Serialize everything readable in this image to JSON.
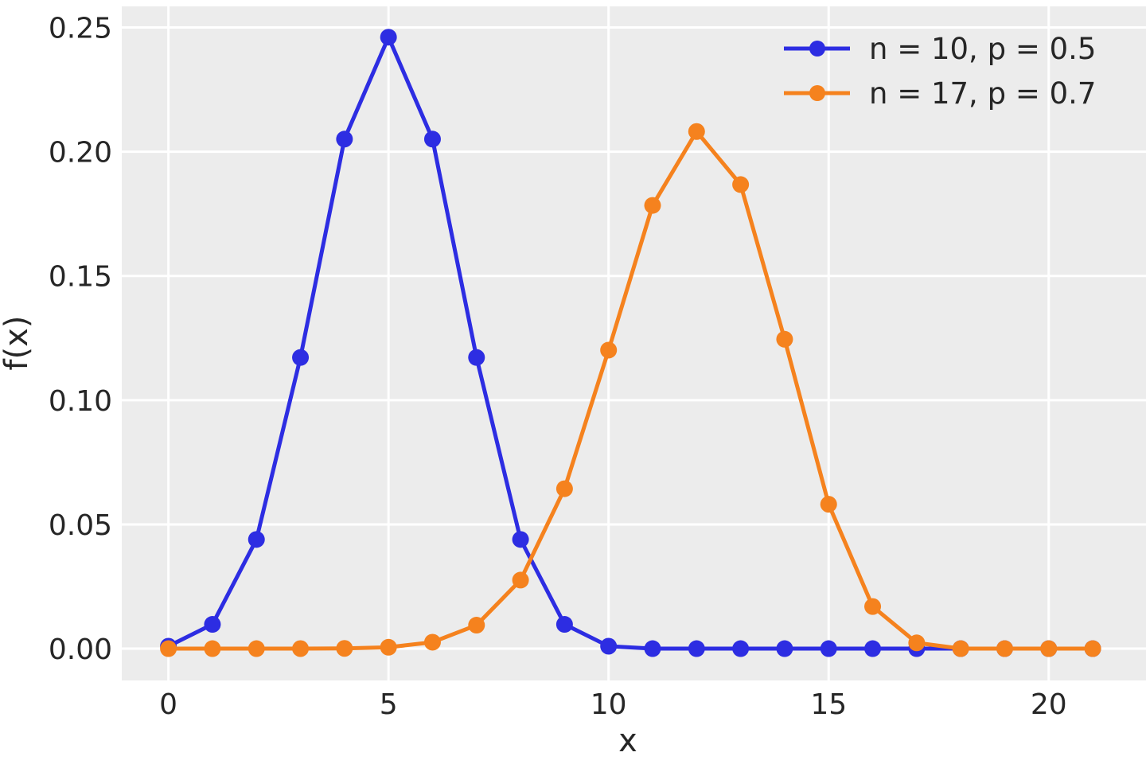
{
  "chart_data": {
    "type": "line",
    "title": "",
    "xlabel": "x",
    "ylabel": "f(x)",
    "x": [
      0,
      1,
      2,
      3,
      4,
      5,
      6,
      7,
      8,
      9,
      10,
      11,
      12,
      13,
      14,
      15,
      16,
      17,
      18,
      19,
      20,
      21
    ],
    "series": [
      {
        "name": "n = 10, p = 0.5",
        "color": "#2d2de2",
        "values": [
          0.000977,
          0.009766,
          0.043945,
          0.117188,
          0.205078,
          0.246094,
          0.205078,
          0.117188,
          0.043945,
          0.009766,
          0.000977,
          0,
          0,
          0,
          0,
          0,
          0,
          0,
          0,
          0,
          0,
          0
        ]
      },
      {
        "name": "n = 17, p = 0.7",
        "color": "#f5821e",
        "values": [
          0,
          0,
          1e-06,
          1.1e-05,
          9.1e-05,
          0.000553,
          0.002581,
          0.009452,
          0.027584,
          0.064363,
          0.120144,
          0.178396,
          0.208129,
          0.186783,
          0.124522,
          0.05811,
          0.016949,
          0.002326,
          0,
          0,
          0,
          0
        ]
      }
    ],
    "xlim": [
      -1.06,
      22.21
    ],
    "ylim": [
      -0.0128,
      0.2585
    ],
    "xticks": {
      "values": [
        0,
        5,
        10,
        15,
        20
      ],
      "labels": [
        "0",
        "5",
        "10",
        "15",
        "20"
      ]
    },
    "yticks": {
      "values": [
        0,
        0.05,
        0.1,
        0.15,
        0.2,
        0.25
      ],
      "labels": [
        "0.00",
        "0.05",
        "0.10",
        "0.15",
        "0.20",
        "0.25"
      ]
    },
    "grid": true,
    "legend_position": "upper right",
    "marker": "circle",
    "plot_background": "#ececec",
    "grid_color": "#ffffff",
    "text_color": "#262626"
  }
}
